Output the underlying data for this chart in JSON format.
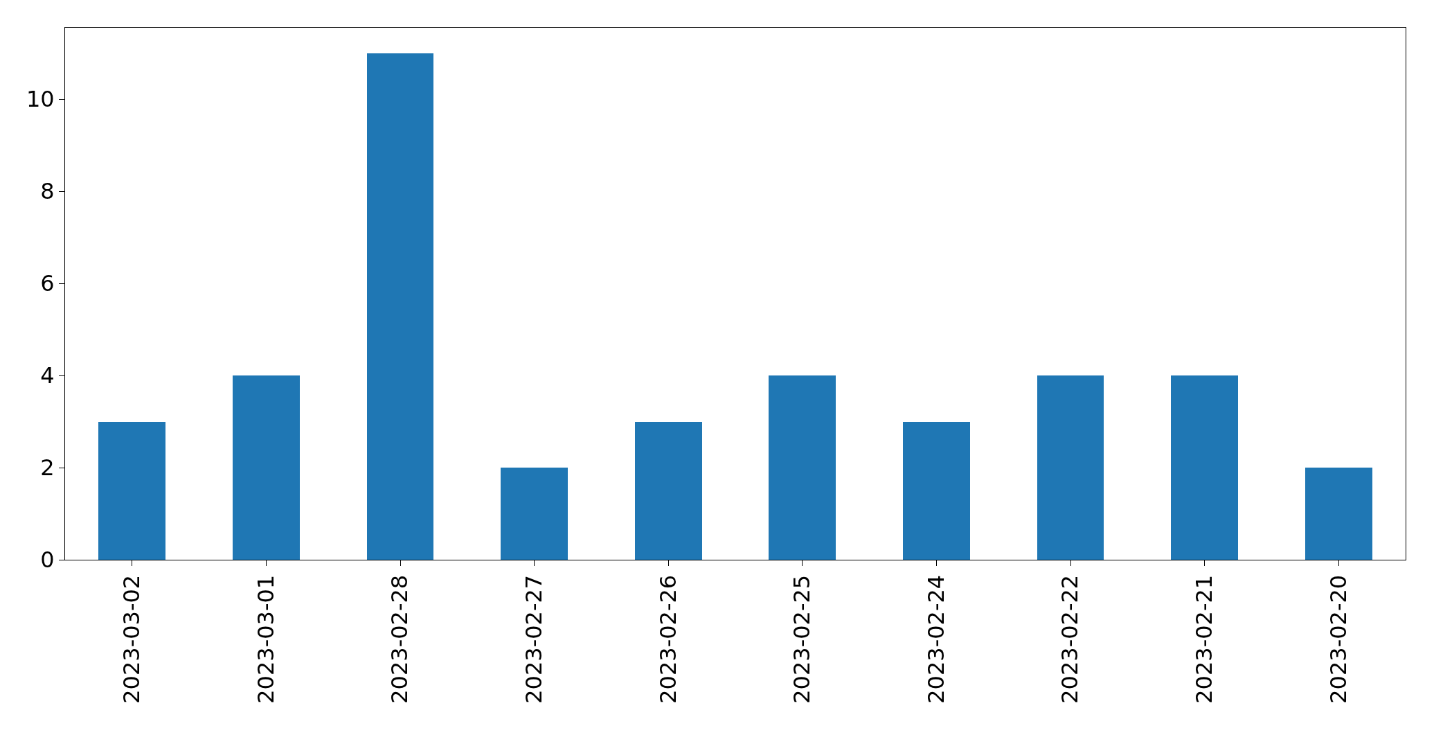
{
  "chart_data": {
    "type": "bar",
    "categories": [
      "2023-03-02",
      "2023-03-01",
      "2023-02-28",
      "2023-02-27",
      "2023-02-26",
      "2023-02-25",
      "2023-02-24",
      "2023-02-22",
      "2023-02-21",
      "2023-02-20"
    ],
    "values": [
      3,
      4,
      11,
      2,
      3,
      4,
      3,
      4,
      4,
      2
    ],
    "color": "#1f77b4",
    "ylim": [
      0,
      11.55
    ],
    "yticks": [
      0,
      2,
      4,
      6,
      8,
      10
    ]
  }
}
